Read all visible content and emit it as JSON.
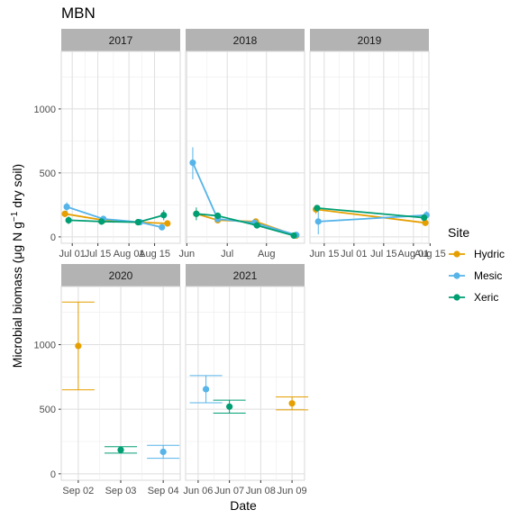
{
  "chart_data": {
    "type": "scatter",
    "title": "MBN",
    "xlabel": "Date",
    "ylabel_parts": {
      "pre": "Microbial biomass (",
      "mu": "μ",
      "mid": "g N g",
      "sup": "−1",
      "post": " dry soil)"
    },
    "legend": {
      "title": "Site",
      "position": "right"
    },
    "series_colors": {
      "Hydric": "#E69F00",
      "Mesic": "#56B4E9",
      "Xeric": "#009E73"
    },
    "rows": [
      {
        "y_range": [
          -50,
          1450
        ],
        "y_ticks": [
          0,
          500,
          1000
        ],
        "panels": [
          {
            "strip": "2017",
            "x_range": [
              0,
              65
            ],
            "x_ticks": [
              {
                "v": 6,
                "label": "Jul 01"
              },
              {
                "v": 20,
                "label": "Jul 15"
              },
              {
                "v": 37,
                "label": "Aug 01"
              },
              {
                "v": 51,
                "label": "Aug 15"
              }
            ],
            "series": [
              {
                "name": "Hydric",
                "points": [
                  {
                    "x": 2,
                    "y": 180,
                    "lo": 155,
                    "hi": 205
                  },
                  {
                    "x": 23,
                    "y": 130,
                    "lo": 110,
                    "hi": 150
                  },
                  {
                    "x": 42,
                    "y": 115,
                    "lo": 95,
                    "hi": 135
                  },
                  {
                    "x": 58,
                    "y": 105,
                    "lo": 85,
                    "hi": 125
                  }
                ]
              },
              {
                "name": "Mesic",
                "points": [
                  {
                    "x": 3,
                    "y": 235,
                    "lo": 200,
                    "hi": 270
                  },
                  {
                    "x": 23,
                    "y": 140,
                    "lo": 120,
                    "hi": 160
                  },
                  {
                    "x": 43,
                    "y": 115,
                    "lo": 95,
                    "hi": 135
                  },
                  {
                    "x": 55,
                    "y": 75,
                    "lo": 55,
                    "hi": 95
                  }
                ]
              },
              {
                "name": "Xeric",
                "points": [
                  {
                    "x": 4,
                    "y": 130,
                    "lo": 100,
                    "hi": 160
                  },
                  {
                    "x": 22,
                    "y": 120,
                    "lo": 95,
                    "hi": 145
                  },
                  {
                    "x": 42,
                    "y": 115,
                    "lo": 90,
                    "hi": 140
                  },
                  {
                    "x": 56,
                    "y": 170,
                    "lo": 130,
                    "hi": 210
                  }
                ]
              }
            ]
          },
          {
            "strip": "2018",
            "x_range": [
              0,
              100
            ],
            "x_ticks": [
              {
                "v": 1,
                "label": "Jun"
              },
              {
                "v": 35,
                "label": "Jul"
              },
              {
                "v": 68,
                "label": "Aug"
              }
            ],
            "series": [
              {
                "name": "Hydric",
                "points": [
                  {
                    "x": 9,
                    "y": 180,
                    "lo": 150,
                    "hi": 210
                  },
                  {
                    "x": 27,
                    "y": 130,
                    "lo": 110,
                    "hi": 150
                  },
                  {
                    "x": 59,
                    "y": 120,
                    "lo": 100,
                    "hi": 140
                  },
                  {
                    "x": 93,
                    "y": 10,
                    "lo": 0,
                    "hi": 25
                  }
                ]
              },
              {
                "name": "Mesic",
                "points": [
                  {
                    "x": 6,
                    "y": 580,
                    "lo": 450,
                    "hi": 700
                  },
                  {
                    "x": 27,
                    "y": 140,
                    "lo": 115,
                    "hi": 165
                  },
                  {
                    "x": 58,
                    "y": 110,
                    "lo": 90,
                    "hi": 130
                  },
                  {
                    "x": 93,
                    "y": 15,
                    "lo": 0,
                    "hi": 35
                  }
                ]
              },
              {
                "name": "Xeric",
                "points": [
                  {
                    "x": 9,
                    "y": 180,
                    "lo": 130,
                    "hi": 230
                  },
                  {
                    "x": 27,
                    "y": 165,
                    "lo": 140,
                    "hi": 190
                  },
                  {
                    "x": 60,
                    "y": 90,
                    "lo": 70,
                    "hi": 110
                  },
                  {
                    "x": 91,
                    "y": 10,
                    "lo": 0,
                    "hi": 25
                  }
                ]
              }
            ]
          },
          {
            "strip": "2019",
            "x_range": [
              0,
              100
            ],
            "x_ticks": [
              {
                "v": 12,
                "label": "Jun 15"
              },
              {
                "v": 37,
                "label": "Jul 01"
              },
              {
                "v": 62,
                "label": "Jul 15"
              },
              {
                "v": 87,
                "label": "Aug 01"
              },
              {
                "v": 101,
                "label": "Aug 15"
              }
            ],
            "series": [
              {
                "name": "Hydric",
                "points": [
                  {
                    "x": 5,
                    "y": 215,
                    "lo": 180,
                    "hi": 250
                  },
                  {
                    "x": 97,
                    "y": 110,
                    "lo": 90,
                    "hi": 130
                  }
                ]
              },
              {
                "name": "Mesic",
                "points": [
                  {
                    "x": 7,
                    "y": 120,
                    "lo": 20,
                    "hi": 220
                  },
                  {
                    "x": 98,
                    "y": 170,
                    "lo": 140,
                    "hi": 200
                  }
                ]
              },
              {
                "name": "Xeric",
                "points": [
                  {
                    "x": 6,
                    "y": 225,
                    "lo": 200,
                    "hi": 250
                  },
                  {
                    "x": 96,
                    "y": 150,
                    "lo": 130,
                    "hi": 170
                  }
                ]
              }
            ]
          }
        ]
      },
      {
        "y_range": [
          -50,
          1450
        ],
        "y_ticks": [
          0,
          500,
          1000
        ],
        "panels": [
          {
            "strip": "2020",
            "x_range": [
              0.6,
              3.4
            ],
            "x_ticks": [
              {
                "v": 1,
                "label": "Sep 02"
              },
              {
                "v": 2,
                "label": "Sep 03"
              },
              {
                "v": 3,
                "label": "Sep 04"
              }
            ],
            "series": [
              {
                "name": "Hydric",
                "points": [
                  {
                    "x": 1,
                    "y": 990,
                    "lo": 650,
                    "hi": 1330
                  }
                ]
              },
              {
                "name": "Mesic",
                "points": [
                  {
                    "x": 3,
                    "y": 170,
                    "lo": 120,
                    "hi": 220
                  }
                ]
              },
              {
                "name": "Xeric",
                "points": [
                  {
                    "x": 2,
                    "y": 185,
                    "lo": 160,
                    "hi": 210
                  }
                ]
              }
            ]
          },
          {
            "strip": "2021",
            "x_range": [
              0.6,
              4.4
            ],
            "x_ticks": [
              {
                "v": 1,
                "label": "Jun 06"
              },
              {
                "v": 2,
                "label": "Jun 07"
              },
              {
                "v": 3,
                "label": "Jun 08"
              },
              {
                "v": 4,
                "label": "Jun 09"
              }
            ],
            "series": [
              {
                "name": "Hydric",
                "points": [
                  {
                    "x": 4,
                    "y": 545,
                    "lo": 495,
                    "hi": 595
                  }
                ]
              },
              {
                "name": "Mesic",
                "points": [
                  {
                    "x": 1.25,
                    "y": 655,
                    "lo": 550,
                    "hi": 760
                  }
                ]
              },
              {
                "name": "Xeric",
                "points": [
                  {
                    "x": 2,
                    "y": 520,
                    "lo": 470,
                    "hi": 570
                  }
                ]
              }
            ]
          }
        ]
      }
    ]
  }
}
